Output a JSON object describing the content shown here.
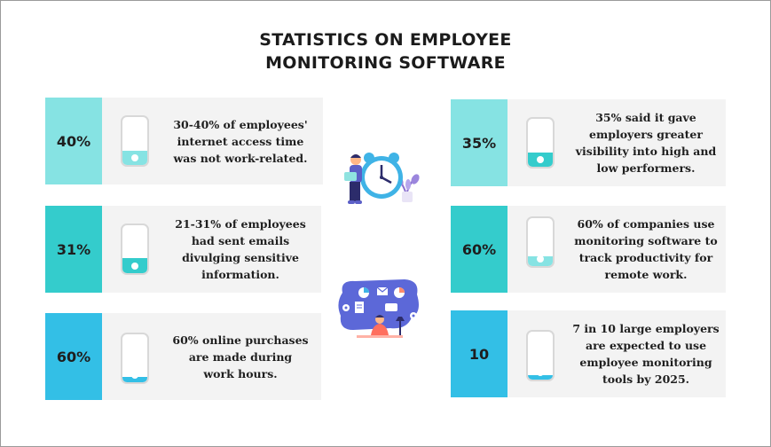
{
  "title": {
    "line1": "STATISTICS ON EMPLOYEE",
    "line2": "MONITORING SOFTWARE"
  },
  "colors": {
    "teal_light": "#86e3e3",
    "teal_mid": "#34cccc",
    "cyan_blue": "#33bfe6",
    "card_bg": "#f3f3f3"
  },
  "cards": [
    {
      "pct": "40%",
      "lines": [
        "30-40% of employees'",
        "internet access time",
        "was not work-related."
      ],
      "accent": "#86e3e3",
      "fill": 0.3
    },
    {
      "pct": "31%",
      "lines": [
        "21-31% of employees",
        "had sent emails",
        "divulging sensitive",
        "information."
      ],
      "accent": "#34cccc",
      "fill": 0.31
    },
    {
      "pct": "60%",
      "lines": [
        "60% online purchases",
        "are made during",
        "work hours."
      ],
      "accent": "#33bfe6",
      "fill": 0.12
    },
    {
      "pct": "35%",
      "lines": [
        "35% said it gave",
        "employers greater",
        "visibility into high and",
        "low performers."
      ],
      "accent": "#86e3e3",
      "fill": 0.3
    },
    {
      "pct": "60%",
      "lines": [
        "60%  of  companies  use",
        "monitoring software to",
        "track productivity for",
        "remote work."
      ],
      "accent": "#34cccc",
      "fill": 0.2
    },
    {
      "pct": "10",
      "lines": [
        "7 in 10 large employers",
        "are expected to use",
        "employee monitoring",
        "tools by 2025."
      ],
      "accent": "#33bfe6",
      "fill": 0.1
    }
  ],
  "illustrations": {
    "top": "clock-person-illustration",
    "bottom": "remote-work-illustration"
  }
}
